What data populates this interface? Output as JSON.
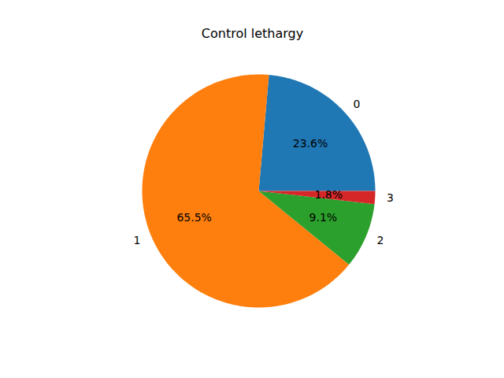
{
  "chart_data": {
    "type": "pie",
    "title": "Control lethargy",
    "categories": [
      "0",
      "1",
      "2",
      "3"
    ],
    "values": [
      23.6,
      65.5,
      9.1,
      1.8
    ],
    "value_labels": [
      "23.6%",
      "65.5%",
      "9.1%",
      "1.8%"
    ],
    "colors": [
      "#1f77b4",
      "#ff7f0e",
      "#2ca02c",
      "#d62728"
    ],
    "data_labels": true
  }
}
